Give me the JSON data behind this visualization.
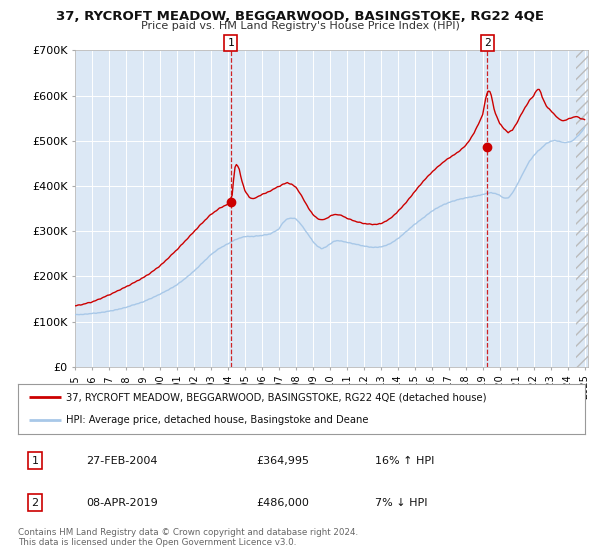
{
  "title": "37, RYCROFT MEADOW, BEGGARWOOD, BASINGSTOKE, RG22 4QE",
  "subtitle": "Price paid vs. HM Land Registry's House Price Index (HPI)",
  "xlim_start": 1995.0,
  "xlim_end": 2025.2,
  "ylim": [
    0,
    700000
  ],
  "yticks": [
    0,
    100000,
    200000,
    300000,
    400000,
    500000,
    600000,
    700000
  ],
  "ytick_labels": [
    "£0",
    "£100K",
    "£200K",
    "£300K",
    "£400K",
    "£500K",
    "£600K",
    "£700K"
  ],
  "hpi_color": "#a8c8e8",
  "price_color": "#cc0000",
  "marker_color": "#cc0000",
  "vline_color": "#cc0000",
  "plot_bg": "#dce8f5",
  "grid_color": "#ffffff",
  "legend_label_red": "37, RYCROFT MEADOW, BEGGARWOOD, BASINGSTOKE, RG22 4QE (detached house)",
  "legend_label_blue": "HPI: Average price, detached house, Basingstoke and Deane",
  "sale1_x": 2004.16,
  "sale1_y": 364995,
  "sale2_x": 2019.27,
  "sale2_y": 486000,
  "table_data": [
    [
      "1",
      "27-FEB-2004",
      "£364,995",
      "16% ↑ HPI"
    ],
    [
      "2",
      "08-APR-2019",
      "£486,000",
      "7% ↓ HPI"
    ]
  ],
  "copyright_text": "Contains HM Land Registry data © Crown copyright and database right 2024.\nThis data is licensed under the Open Government Licence v3.0.",
  "xtick_years": [
    1995,
    1996,
    1997,
    1998,
    1999,
    2000,
    2001,
    2002,
    2003,
    2004,
    2005,
    2006,
    2007,
    2008,
    2009,
    2010,
    2011,
    2012,
    2013,
    2014,
    2015,
    2016,
    2017,
    2018,
    2019,
    2020,
    2021,
    2022,
    2023,
    2024,
    2025
  ],
  "hpi_data_x": [
    1995.0,
    1995.08,
    1995.17,
    1995.25,
    1995.33,
    1995.42,
    1995.5,
    1995.58,
    1995.67,
    1995.75,
    1995.83,
    1995.92,
    1996.0,
    1996.08,
    1996.17,
    1996.25,
    1996.33,
    1996.42,
    1996.5,
    1996.58,
    1996.67,
    1996.75,
    1996.83,
    1996.92,
    1997.0,
    1997.08,
    1997.17,
    1997.25,
    1997.33,
    1997.42,
    1997.5,
    1997.58,
    1997.67,
    1997.75,
    1997.83,
    1997.92,
    1998.0,
    1998.08,
    1998.17,
    1998.25,
    1998.33,
    1998.42,
    1998.5,
    1998.58,
    1998.67,
    1998.75,
    1998.83,
    1998.92,
    1999.0,
    1999.08,
    1999.17,
    1999.25,
    1999.33,
    1999.42,
    1999.5,
    1999.58,
    1999.67,
    1999.75,
    1999.83,
    1999.92,
    2000.0,
    2000.08,
    2000.17,
    2000.25,
    2000.33,
    2000.42,
    2000.5,
    2000.58,
    2000.67,
    2000.75,
    2000.83,
    2000.92,
    2001.0,
    2001.08,
    2001.17,
    2001.25,
    2001.33,
    2001.42,
    2001.5,
    2001.58,
    2001.67,
    2001.75,
    2001.83,
    2001.92,
    2002.0,
    2002.08,
    2002.17,
    2002.25,
    2002.33,
    2002.42,
    2002.5,
    2002.58,
    2002.67,
    2002.75,
    2002.83,
    2002.92,
    2003.0,
    2003.08,
    2003.17,
    2003.25,
    2003.33,
    2003.42,
    2003.5,
    2003.58,
    2003.67,
    2003.75,
    2003.83,
    2003.92,
    2004.0,
    2004.08,
    2004.17,
    2004.25,
    2004.33,
    2004.42,
    2004.5,
    2004.58,
    2004.67,
    2004.75,
    2004.83,
    2004.92,
    2005.0,
    2005.08,
    2005.17,
    2005.25,
    2005.33,
    2005.42,
    2005.5,
    2005.58,
    2005.67,
    2005.75,
    2005.83,
    2005.92,
    2006.0,
    2006.08,
    2006.17,
    2006.25,
    2006.33,
    2006.42,
    2006.5,
    2006.58,
    2006.67,
    2006.75,
    2006.83,
    2006.92,
    2007.0,
    2007.08,
    2007.17,
    2007.25,
    2007.33,
    2007.42,
    2007.5,
    2007.58,
    2007.67,
    2007.75,
    2007.83,
    2007.92,
    2008.0,
    2008.08,
    2008.17,
    2008.25,
    2008.33,
    2008.42,
    2008.5,
    2008.58,
    2008.67,
    2008.75,
    2008.83,
    2008.92,
    2009.0,
    2009.08,
    2009.17,
    2009.25,
    2009.33,
    2009.42,
    2009.5,
    2009.58,
    2009.67,
    2009.75,
    2009.83,
    2009.92,
    2010.0,
    2010.08,
    2010.17,
    2010.25,
    2010.33,
    2010.42,
    2010.5,
    2010.58,
    2010.67,
    2010.75,
    2010.83,
    2010.92,
    2011.0,
    2011.08,
    2011.17,
    2011.25,
    2011.33,
    2011.42,
    2011.5,
    2011.58,
    2011.67,
    2011.75,
    2011.83,
    2011.92,
    2012.0,
    2012.08,
    2012.17,
    2012.25,
    2012.33,
    2012.42,
    2012.5,
    2012.58,
    2012.67,
    2012.75,
    2012.83,
    2012.92,
    2013.0,
    2013.08,
    2013.17,
    2013.25,
    2013.33,
    2013.42,
    2013.5,
    2013.58,
    2013.67,
    2013.75,
    2013.83,
    2013.92,
    2014.0,
    2014.08,
    2014.17,
    2014.25,
    2014.33,
    2014.42,
    2014.5,
    2014.58,
    2014.67,
    2014.75,
    2014.83,
    2014.92,
    2015.0,
    2015.08,
    2015.17,
    2015.25,
    2015.33,
    2015.42,
    2015.5,
    2015.58,
    2015.67,
    2015.75,
    2015.83,
    2015.92,
    2016.0,
    2016.08,
    2016.17,
    2016.25,
    2016.33,
    2016.42,
    2016.5,
    2016.58,
    2016.67,
    2016.75,
    2016.83,
    2016.92,
    2017.0,
    2017.08,
    2017.17,
    2017.25,
    2017.33,
    2017.42,
    2017.5,
    2017.58,
    2017.67,
    2017.75,
    2017.83,
    2017.92,
    2018.0,
    2018.08,
    2018.17,
    2018.25,
    2018.33,
    2018.42,
    2018.5,
    2018.58,
    2018.67,
    2018.75,
    2018.83,
    2018.92,
    2019.0,
    2019.08,
    2019.17,
    2019.25,
    2019.33,
    2019.42,
    2019.5,
    2019.58,
    2019.67,
    2019.75,
    2019.83,
    2019.92,
    2020.0,
    2020.08,
    2020.17,
    2020.25,
    2020.33,
    2020.42,
    2020.5,
    2020.58,
    2020.67,
    2020.75,
    2020.83,
    2020.92,
    2021.0,
    2021.08,
    2021.17,
    2021.25,
    2021.33,
    2021.42,
    2021.5,
    2021.58,
    2021.67,
    2021.75,
    2021.83,
    2021.92,
    2022.0,
    2022.08,
    2022.17,
    2022.25,
    2022.33,
    2022.42,
    2022.5,
    2022.58,
    2022.67,
    2022.75,
    2022.83,
    2022.92,
    2023.0,
    2023.08,
    2023.17,
    2023.25,
    2023.33,
    2023.42,
    2023.5,
    2023.58,
    2023.67,
    2023.75,
    2023.83,
    2023.92,
    2024.0,
    2024.08,
    2024.17,
    2024.25,
    2024.33,
    2024.42,
    2024.5,
    2024.58,
    2024.67,
    2024.75,
    2024.83,
    2024.92,
    2025.0
  ],
  "future_start": 2024.5
}
